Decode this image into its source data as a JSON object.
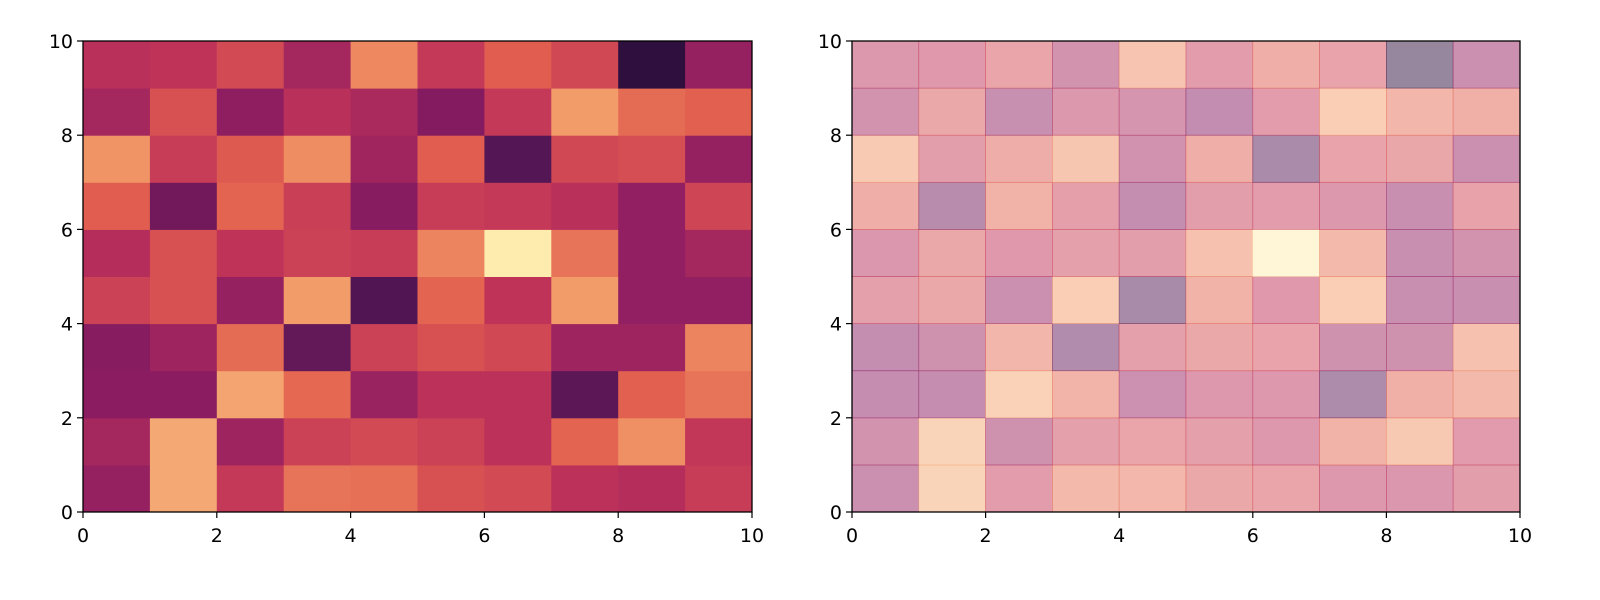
{
  "chart_data": [
    {
      "type": "heatmap",
      "title": "",
      "xlabel": "",
      "ylabel": "",
      "xlim": [
        0,
        10
      ],
      "ylim": [
        0,
        10
      ],
      "xticks": [
        "0",
        "2",
        "4",
        "6",
        "8",
        "10"
      ],
      "yticks": [
        "0",
        "2",
        "4",
        "6",
        "8",
        "10"
      ],
      "grid": false,
      "colormap": "magma-like (dark purple to pale yellow)",
      "alpha": 1.0,
      "cell_edges": false,
      "rows_bottom_to_top": [
        [
          0.38,
          0.83,
          0.52,
          0.7,
          0.69,
          0.6,
          0.58,
          0.49,
          0.47,
          0.53
        ],
        [
          0.42,
          0.83,
          0.4,
          0.55,
          0.58,
          0.55,
          0.49,
          0.66,
          0.77,
          0.51
        ],
        [
          0.35,
          0.35,
          0.82,
          0.67,
          0.39,
          0.49,
          0.49,
          0.22,
          0.65,
          0.7
        ],
        [
          0.34,
          0.4,
          0.68,
          0.24,
          0.55,
          0.6,
          0.57,
          0.4,
          0.4,
          0.74
        ],
        [
          0.55,
          0.6,
          0.38,
          0.8,
          0.18,
          0.66,
          0.5,
          0.8,
          0.37,
          0.37
        ],
        [
          0.47,
          0.6,
          0.5,
          0.55,
          0.53,
          0.74,
          1.0,
          0.7,
          0.37,
          0.42
        ],
        [
          0.64,
          0.28,
          0.66,
          0.54,
          0.34,
          0.53,
          0.52,
          0.48,
          0.37,
          0.56
        ],
        [
          0.78,
          0.53,
          0.63,
          0.76,
          0.41,
          0.64,
          0.2,
          0.57,
          0.59,
          0.38
        ],
        [
          0.42,
          0.6,
          0.36,
          0.48,
          0.44,
          0.33,
          0.52,
          0.8,
          0.68,
          0.65
        ],
        [
          0.48,
          0.5,
          0.58,
          0.42,
          0.75,
          0.52,
          0.64,
          0.57,
          0.0,
          0.38
        ]
      ]
    },
    {
      "type": "heatmap",
      "title": "",
      "xlabel": "",
      "ylabel": "",
      "xlim": [
        0,
        10
      ],
      "ylim": [
        0,
        10
      ],
      "xticks": [
        "0",
        "2",
        "4",
        "6",
        "8",
        "10"
      ],
      "yticks": [
        "0",
        "2",
        "4",
        "6",
        "8",
        "10"
      ],
      "grid": false,
      "colormap": "magma-like (dark purple to pale yellow)",
      "alpha": 0.5,
      "cell_edges": true,
      "rows_bottom_to_top": [
        [
          0.38,
          0.83,
          0.52,
          0.7,
          0.69,
          0.6,
          0.58,
          0.49,
          0.47,
          0.53
        ],
        [
          0.42,
          0.83,
          0.4,
          0.55,
          0.58,
          0.55,
          0.49,
          0.66,
          0.77,
          0.51
        ],
        [
          0.35,
          0.35,
          0.82,
          0.67,
          0.39,
          0.49,
          0.49,
          0.22,
          0.65,
          0.7
        ],
        [
          0.34,
          0.4,
          0.68,
          0.24,
          0.55,
          0.6,
          0.57,
          0.4,
          0.4,
          0.74
        ],
        [
          0.55,
          0.6,
          0.38,
          0.8,
          0.18,
          0.66,
          0.5,
          0.8,
          0.37,
          0.37
        ],
        [
          0.47,
          0.6,
          0.5,
          0.55,
          0.53,
          0.74,
          1.0,
          0.7,
          0.37,
          0.42
        ],
        [
          0.64,
          0.28,
          0.66,
          0.54,
          0.34,
          0.53,
          0.52,
          0.48,
          0.37,
          0.56
        ],
        [
          0.78,
          0.53,
          0.63,
          0.76,
          0.41,
          0.64,
          0.2,
          0.57,
          0.59,
          0.38
        ],
        [
          0.42,
          0.6,
          0.36,
          0.48,
          0.44,
          0.33,
          0.52,
          0.8,
          0.68,
          0.65
        ],
        [
          0.48,
          0.5,
          0.58,
          0.42,
          0.75,
          0.52,
          0.64,
          0.57,
          0.0,
          0.38
        ]
      ]
    }
  ]
}
